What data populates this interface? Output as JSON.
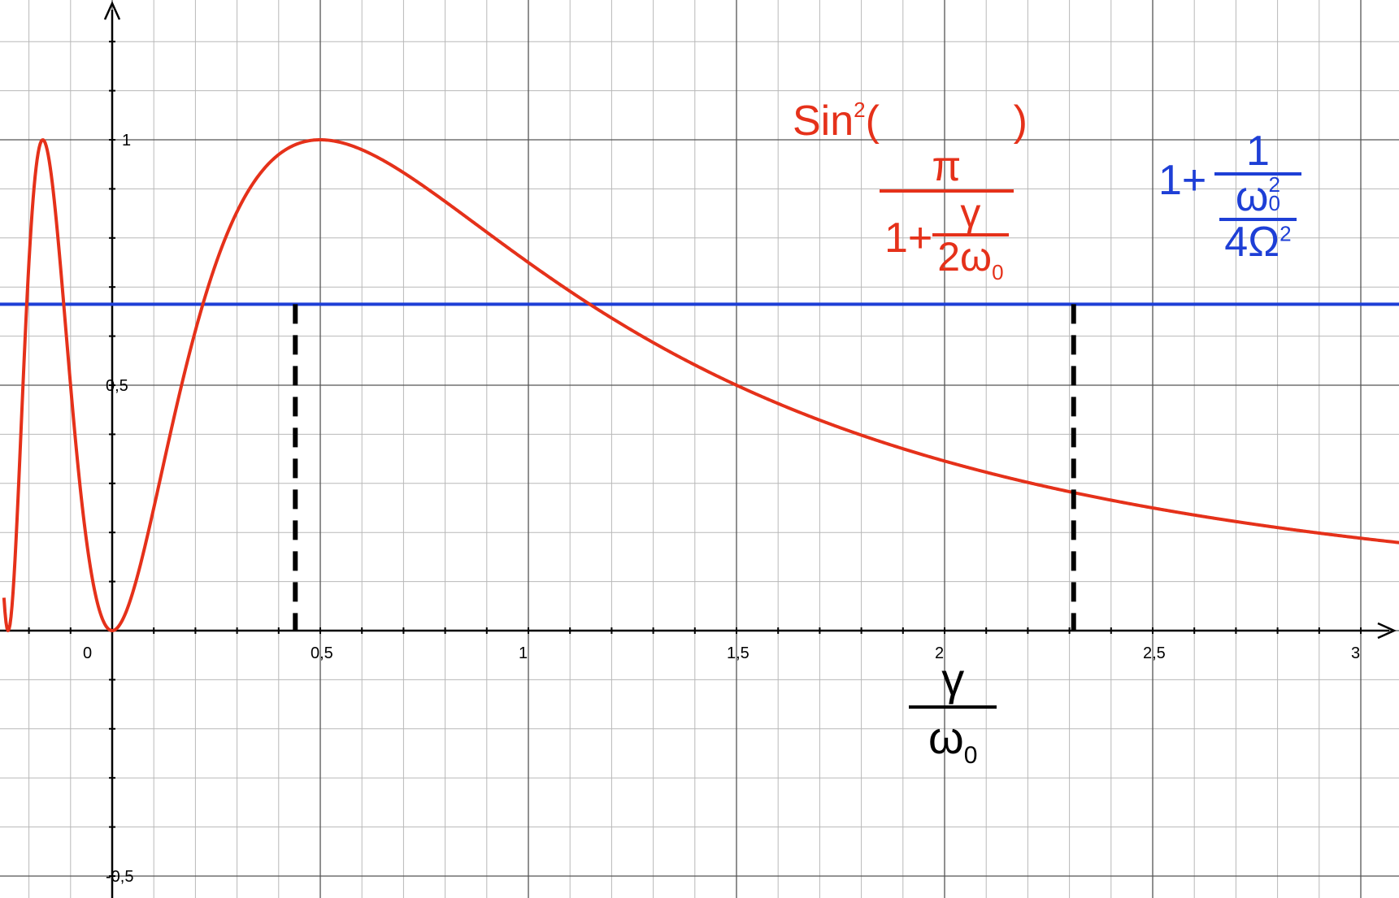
{
  "chart_data": {
    "type": "line",
    "xlim": [
      -0.26,
      3.12
    ],
    "ylim": [
      -0.54,
      1.28
    ],
    "grid": true,
    "x_ticks": [
      {
        "value": 0,
        "label": "0"
      },
      {
        "value": 0.5,
        "label": "0,5"
      },
      {
        "value": 1,
        "label": "1"
      },
      {
        "value": 1.5,
        "label": "1,5"
      },
      {
        "value": 2,
        "label": "2"
      },
      {
        "value": 2.5,
        "label": "2,5"
      },
      {
        "value": 3,
        "label": "3"
      }
    ],
    "y_ticks": [
      {
        "value": 1,
        "label": "1"
      },
      {
        "value": 0.5,
        "label": "0,5"
      },
      {
        "value": -0.5,
        "label": "-0,5"
      }
    ],
    "series": [
      {
        "color": "#e5311a",
        "function": "sin^2(pi/(1+1/(2x)))",
        "x_range": [
          -0.26,
          3.12
        ]
      },
      {
        "color": "#1e3fd6",
        "type": "hline",
        "y": 0.665
      }
    ],
    "markers": [
      {
        "x": 0.44,
        "y": 0.665,
        "style": "dashed",
        "color": "#000000"
      },
      {
        "x": 2.31,
        "y": 0.665,
        "style": "dashed",
        "color": "#000000"
      }
    ]
  },
  "labels": {
    "red_formula": {
      "sin": "Sin",
      "sin_exp": "2",
      "lparen": "(",
      "rparen": ")",
      "pi": "π",
      "one_plus": "1+",
      "gamma": "γ",
      "two_omega": "2ω",
      "omega_sub": "0"
    },
    "blue_formula": {
      "one_plus": "1+",
      "one": "1",
      "omega": "ω",
      "omega_sub": "0",
      "omega_sup": "2",
      "four_Omega": "4Ω",
      "Omega_sup": "2"
    },
    "x_axis_label": {
      "gamma": "γ",
      "omega": "ω",
      "omega_sub": "0"
    }
  }
}
